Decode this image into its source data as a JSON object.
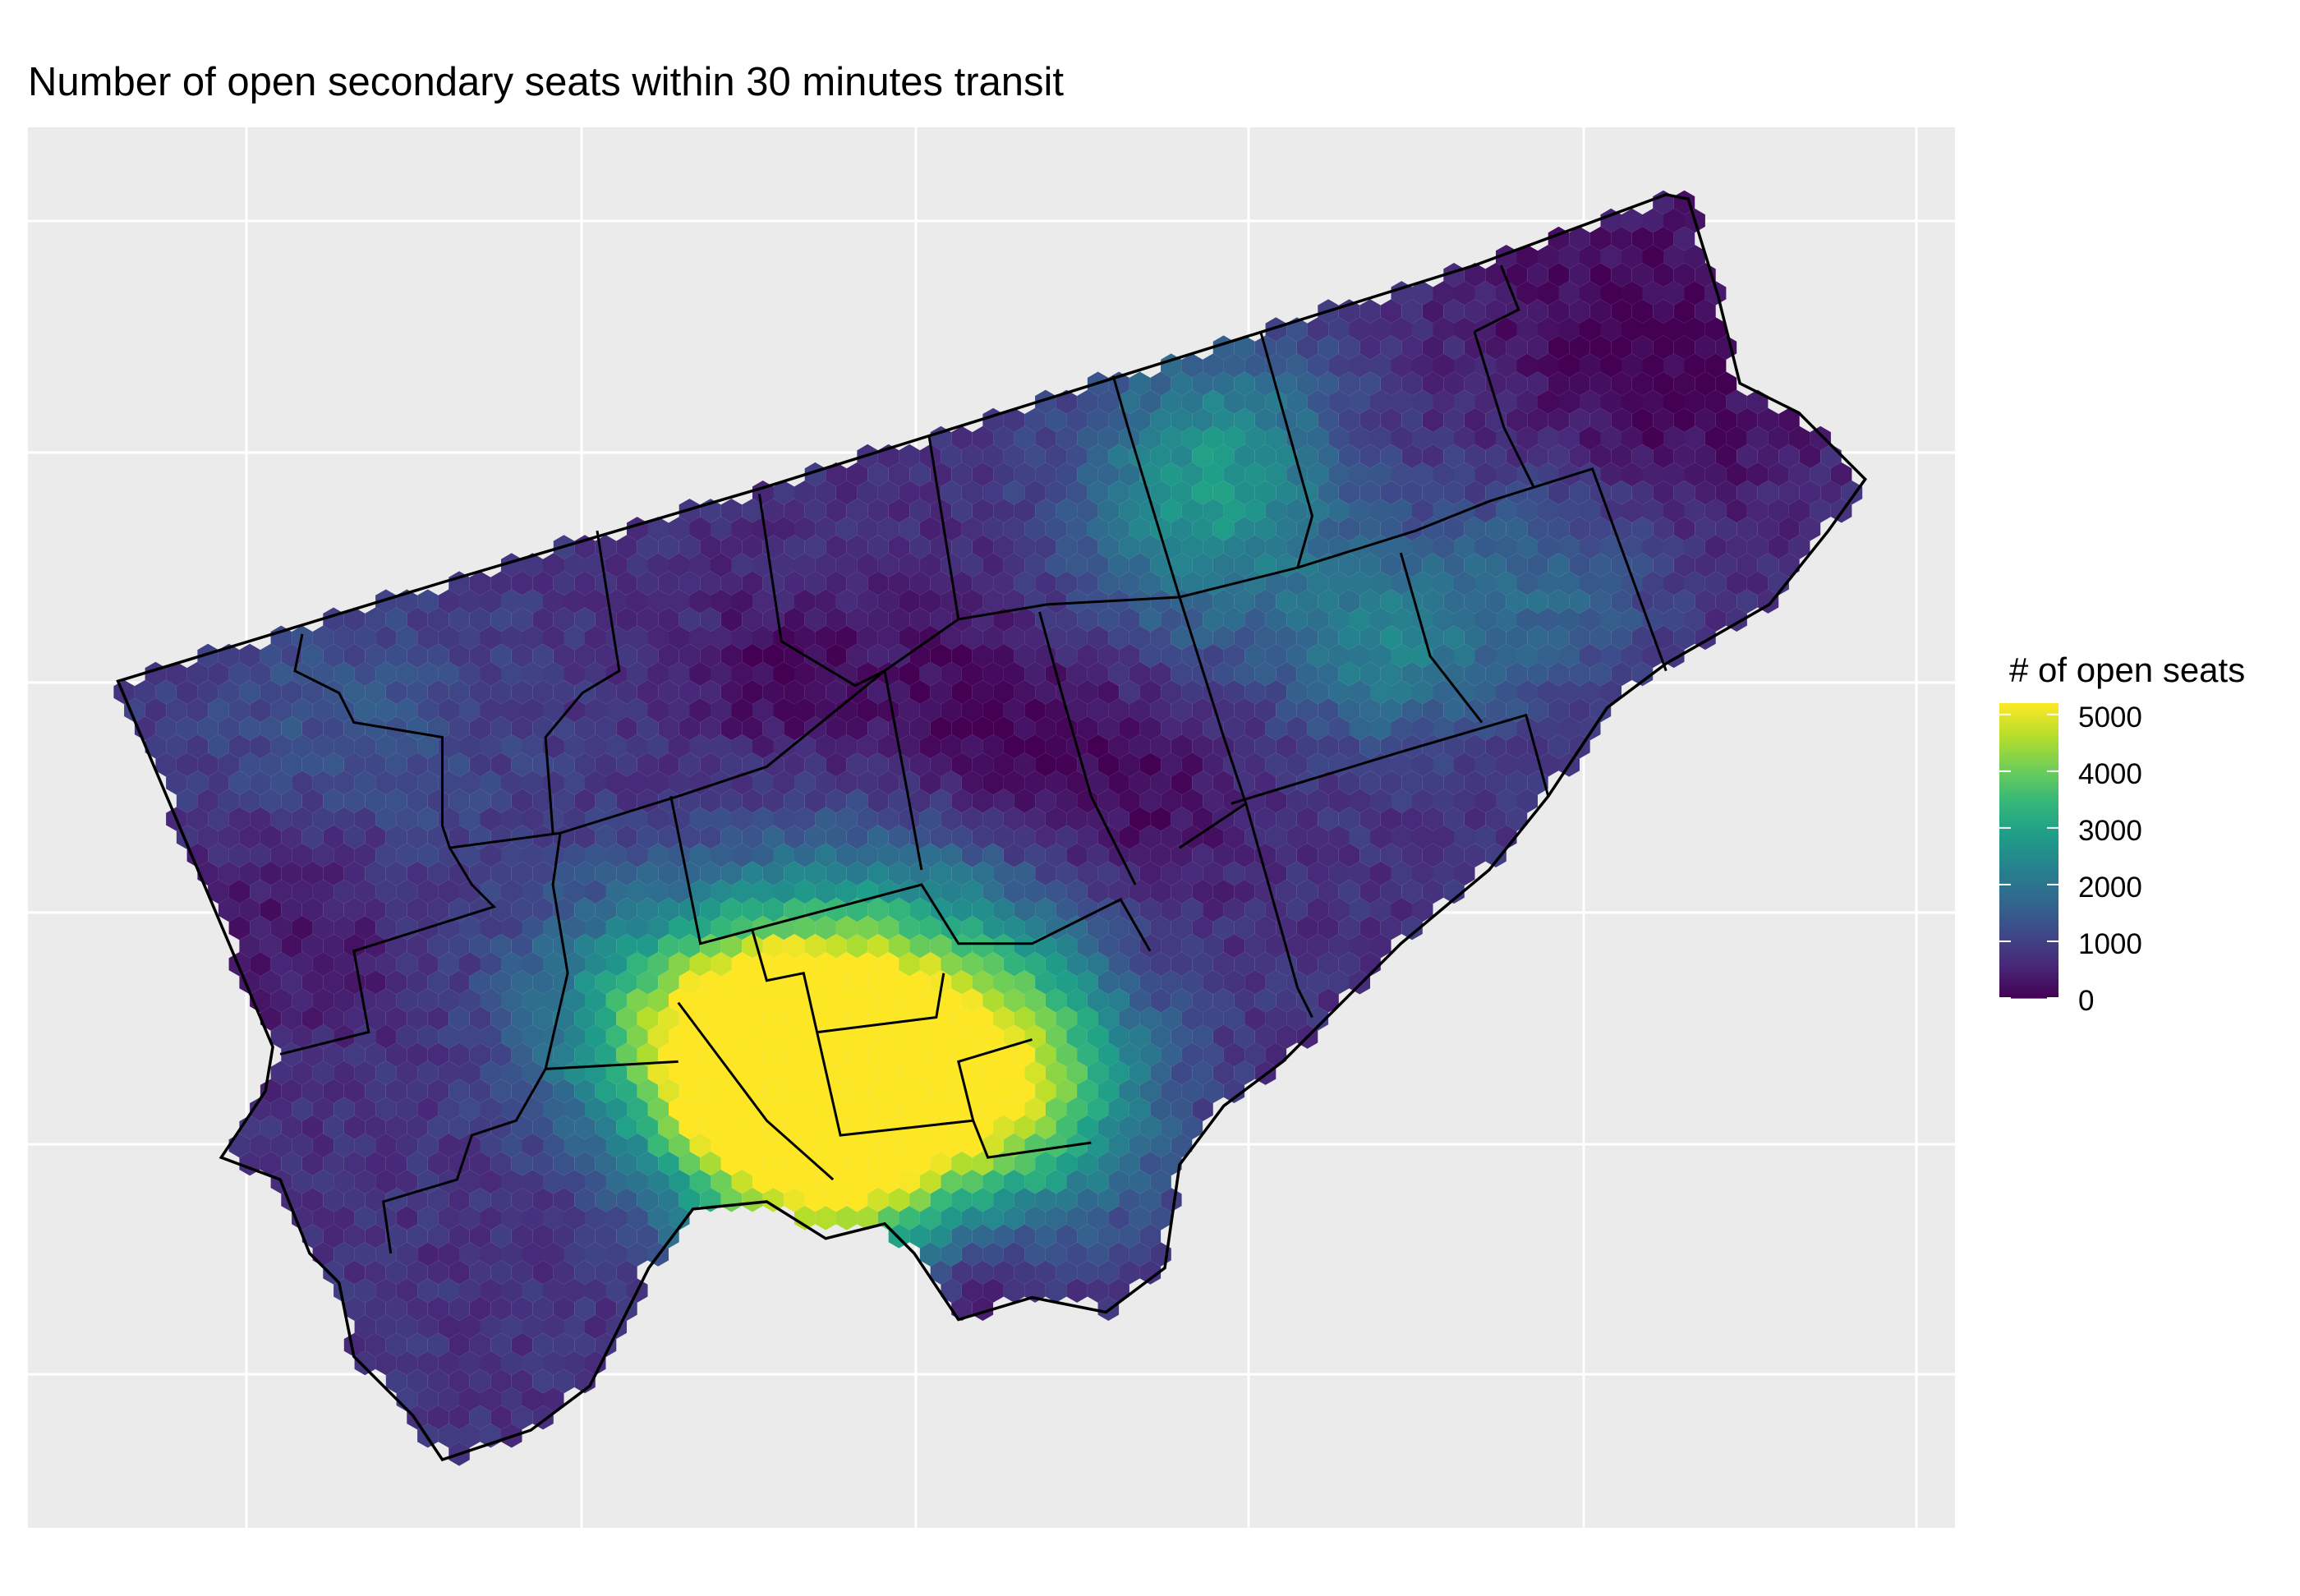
{
  "chart_data": {
    "type": "heatmap",
    "subtype": "hexbin-map",
    "title": "Number of open secondary seats within 30 minutes transit",
    "xlabel": "",
    "ylabel": "",
    "grid": true,
    "axis_tick_labels": false,
    "legend": {
      "title": "# of open seats",
      "placement": "right",
      "colorscale": "viridis",
      "range": [
        0,
        5200
      ],
      "ticks": [
        0,
        1000,
        2000,
        3000,
        4000,
        5000
      ],
      "tick_labels": [
        "0",
        "1000",
        "2000",
        "3000",
        "4000",
        "5000"
      ]
    },
    "colors": {
      "panel_background": "#EBEBEB",
      "gridline": "#FFFFFF",
      "boundary": "#000000",
      "low": "#440154",
      "high": "#FDE725"
    },
    "summary": {
      "max_region": "downtown core (highest, ~5000+)",
      "typical_suburban": "0-1500"
    }
  }
}
